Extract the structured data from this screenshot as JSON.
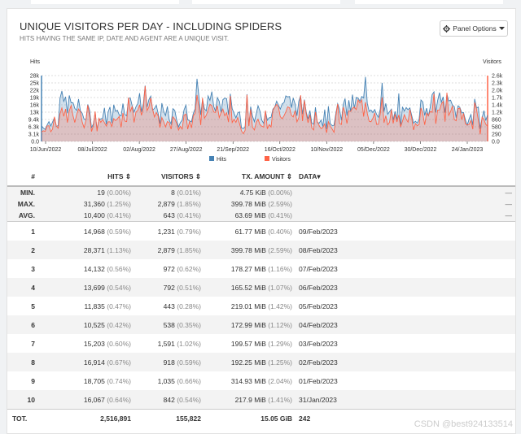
{
  "panel": {
    "title": "UNIQUE VISITORS PER DAY - INCLUDING SPIDERS",
    "subtitle": "HITS HAVING THE SAME IP, DATE AND AGENT ARE A UNIQUE VISIT.",
    "options_label": "Panel Options",
    "options_icon": "gear-icon",
    "caret_icon": "caret-down-icon"
  },
  "chart_data": {
    "type": "area",
    "left_axis_label": "Hits",
    "right_axis_label": "Visitors",
    "left_ticks": [
      "28k",
      "25k",
      "22k",
      "19k",
      "16k",
      "13k",
      "9.4k",
      "6.3k",
      "3.1k",
      "0.0"
    ],
    "right_ticks": [
      "2.6k",
      "2.3k",
      "2.0k",
      "1.7k",
      "1.4k",
      "1.2k",
      "860",
      "580",
      "290",
      "0.0"
    ],
    "x_ticks": [
      "10/Jun/2022",
      "08/Jul/2022",
      "02/Aug/2022",
      "27/Aug/2022",
      "21/Sep/2022",
      "16/Oct/2022",
      "10/Nov/2022",
      "05/Dec/2022",
      "30/Dec/2022",
      "24/Jan/2023"
    ],
    "left_max": 31360,
    "right_max": 2879,
    "series": [
      {
        "name": "Hits",
        "color": "#4682b4"
      },
      {
        "name": "Visitors",
        "color": "#ff6347"
      }
    ],
    "grid": true,
    "legend_position": "bottom"
  },
  "table": {
    "headers": {
      "rank": "#",
      "hits": "HITS",
      "visitors": "VISITORS",
      "tx": "TX. AMOUNT",
      "data": "DATA"
    },
    "summary": [
      {
        "label": "MIN.",
        "hits": "19",
        "hits_pct": "(0.00%)",
        "visitors": "8",
        "visitors_pct": "(0.01%)",
        "tx": "4.75 KiB",
        "tx_pct": "(0.00%)",
        "data": "—"
      },
      {
        "label": "MAX.",
        "hits": "31,360",
        "hits_pct": "(1.25%)",
        "visitors": "2,879",
        "visitors_pct": "(1.85%)",
        "tx": "399.78 MiB",
        "tx_pct": "(2.59%)",
        "data": "—"
      },
      {
        "label": "AVG.",
        "hits": "10,400",
        "hits_pct": "(0.41%)",
        "visitors": "643",
        "visitors_pct": "(0.41%)",
        "tx": "63.69 MiB",
        "tx_pct": "(0.41%)",
        "data": "—"
      }
    ],
    "rows": [
      {
        "rank": "1",
        "hits": "14,968",
        "hits_pct": "(0.59%)",
        "visitors": "1,231",
        "visitors_pct": "(0.79%)",
        "tx": "61.77 MiB",
        "tx_pct": "(0.40%)",
        "data": "09/Feb/2023"
      },
      {
        "rank": "2",
        "hits": "28,371",
        "hits_pct": "(1.13%)",
        "visitors": "2,879",
        "visitors_pct": "(1.85%)",
        "tx": "399.78 MiB",
        "tx_pct": "(2.59%)",
        "data": "08/Feb/2023"
      },
      {
        "rank": "3",
        "hits": "14,132",
        "hits_pct": "(0.56%)",
        "visitors": "972",
        "visitors_pct": "(0.62%)",
        "tx": "178.27 MiB",
        "tx_pct": "(1.16%)",
        "data": "07/Feb/2023"
      },
      {
        "rank": "4",
        "hits": "13,699",
        "hits_pct": "(0.54%)",
        "visitors": "792",
        "visitors_pct": "(0.51%)",
        "tx": "165.52 MiB",
        "tx_pct": "(1.07%)",
        "data": "06/Feb/2023"
      },
      {
        "rank": "5",
        "hits": "11,835",
        "hits_pct": "(0.47%)",
        "visitors": "443",
        "visitors_pct": "(0.28%)",
        "tx": "219.01 MiB",
        "tx_pct": "(1.42%)",
        "data": "05/Feb/2023"
      },
      {
        "rank": "6",
        "hits": "10,525",
        "hits_pct": "(0.42%)",
        "visitors": "538",
        "visitors_pct": "(0.35%)",
        "tx": "172.99 MiB",
        "tx_pct": "(1.12%)",
        "data": "04/Feb/2023"
      },
      {
        "rank": "7",
        "hits": "15,203",
        "hits_pct": "(0.60%)",
        "visitors": "1,591",
        "visitors_pct": "(1.02%)",
        "tx": "199.57 MiB",
        "tx_pct": "(1.29%)",
        "data": "03/Feb/2023"
      },
      {
        "rank": "8",
        "hits": "16,914",
        "hits_pct": "(0.67%)",
        "visitors": "918",
        "visitors_pct": "(0.59%)",
        "tx": "192.25 MiB",
        "tx_pct": "(1.25%)",
        "data": "02/Feb/2023"
      },
      {
        "rank": "9",
        "hits": "18,705",
        "hits_pct": "(0.74%)",
        "visitors": "1,035",
        "visitors_pct": "(0.66%)",
        "tx": "314.93 MiB",
        "tx_pct": "(2.04%)",
        "data": "01/Feb/2023"
      },
      {
        "rank": "10",
        "hits": "16,067",
        "hits_pct": "(0.64%)",
        "visitors": "842",
        "visitors_pct": "(0.54%)",
        "tx": "217.9 MiB",
        "tx_pct": "(1.41%)",
        "data": "31/Jan/2023"
      }
    ],
    "total": {
      "label": "TOT.",
      "hits": "2,516,891",
      "visitors": "155,822",
      "tx": "15.05 GiB",
      "data": "242"
    }
  },
  "watermark": "CSDN @best924133514"
}
